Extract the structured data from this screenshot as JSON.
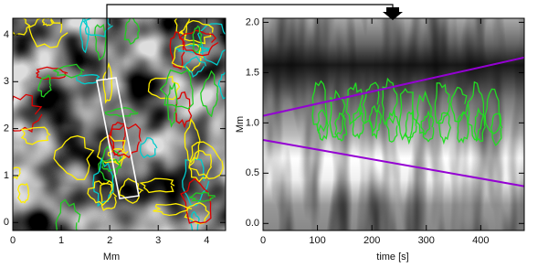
{
  "chart_data": [
    {
      "type": "image",
      "xlabel": "Mm",
      "xlim": [
        0,
        4.39
      ],
      "ylim": [
        -0.17,
        4.35
      ],
      "xticks": [
        0,
        1,
        2,
        3,
        4
      ],
      "yticks": [
        0,
        1,
        2,
        3,
        4
      ]
    },
    {
      "type": "line",
      "xlabel": "time [s]",
      "ylabel": "Mm",
      "xlim": [
        0,
        480
      ],
      "ylim": [
        -0.07,
        2.04
      ],
      "xticks": [
        0,
        100,
        200,
        300,
        400
      ],
      "yticks": [
        {
          "value": 0,
          "label": "0.0"
        },
        0.5,
        {
          "value": 1,
          "label": "1.0"
        },
        1.5,
        {
          "value": 2,
          "label": "2.0"
        }
      ],
      "x": [
        0,
        480
      ],
      "series": [
        {
          "color": "#9400d3",
          "values": [
            1.07,
            1.65
          ]
        },
        {
          "color": "#9400d3",
          "values": [
            0.83,
            0.37
          ]
        }
      ]
    }
  ]
}
